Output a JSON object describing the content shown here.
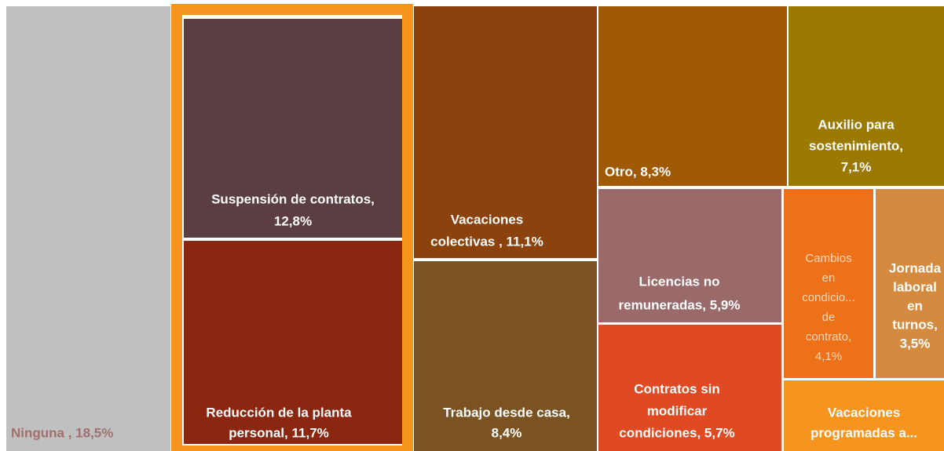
{
  "chart_data": {
    "type": "treemap",
    "values": [
      18.5,
      12.8,
      11.7,
      11.1,
      8.4,
      8.3,
      7.1,
      5.9,
      5.7,
      4.1,
      3.5,
      2.9
    ],
    "labels": [
      [
        "Ninguna , 18,5%"
      ],
      [
        "Suspensión de contratos,",
        "12,8%"
      ],
      [
        "Reducción de la planta",
        "personal, 11,7%"
      ],
      [
        "Vacaciones",
        "colectivas , 11,1%"
      ],
      [
        "Trabajo desde casa,",
        "8,4%"
      ],
      [
        "Otro, 8,3%"
      ],
      [
        "Auxilio para",
        "sostenimiento,",
        "7,1%"
      ],
      [
        "Licencias no",
        "remuneradas, 5,9%"
      ],
      [
        "Contratos sin",
        "modificar",
        "condiciones, 5,7%"
      ],
      [
        "Cambios",
        "en",
        "condicio...",
        "de",
        "contrato,",
        "4,1%"
      ],
      [
        "Jornada",
        "laboral",
        "en",
        "turnos,",
        "3,5%"
      ],
      [
        "Vacaciones",
        "programadas a..."
      ]
    ],
    "colors": [
      "#c0c0c0",
      "#5b3e42",
      "#8b2611",
      "#8c420c",
      "#7b5322",
      "#a05a05",
      "#9c7900",
      "#9a6a6a",
      "#e04a23",
      "#ec7118",
      "#d48b3f",
      "#f7941d"
    ]
  }
}
